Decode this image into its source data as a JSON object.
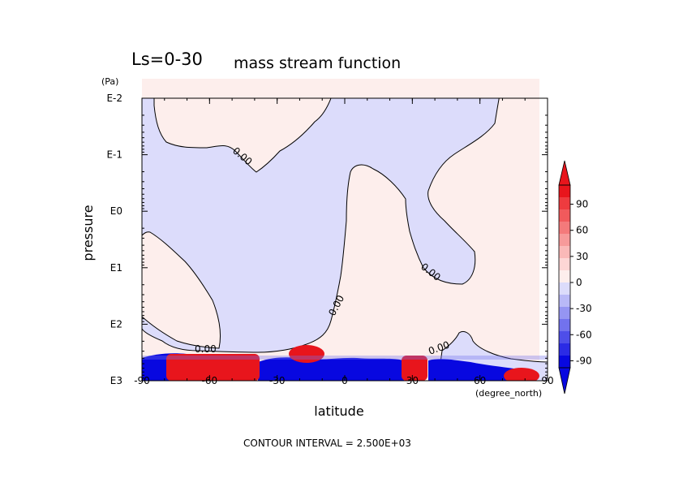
{
  "chart_data": {
    "type": "heatmap",
    "title_left": "Ls=0-30",
    "title": "mass stream function",
    "xlabel": "latitude",
    "ylabel": "pressure",
    "x_unit": "(degree_north)",
    "y_unit": "(Pa)",
    "x_ticks": [
      "-90",
      "-60",
      "-30",
      "0",
      "30",
      "60",
      "90"
    ],
    "x_range": [
      -90,
      90
    ],
    "y_ticks": [
      "E3",
      "E2",
      "E1",
      "E0",
      "E-1",
      "E-2"
    ],
    "y_scale": "log",
    "y_range_exponent": [
      3,
      -2
    ],
    "contour_labels": [
      "0.00",
      "0.00",
      "0.00",
      "0.00",
      "0.00",
      "0.00"
    ],
    "colorbar": {
      "ticks": [
        "90",
        "60",
        "30",
        "0",
        "-30",
        "-60",
        "-90"
      ],
      "levels": [
        {
          "value": 105,
          "color": "#e8151c"
        },
        {
          "value": 90,
          "color": "#ee3b3f"
        },
        {
          "value": 75,
          "color": "#f15a5c"
        },
        {
          "value": 60,
          "color": "#f47a7b"
        },
        {
          "value": 45,
          "color": "#f79a9a"
        },
        {
          "value": 30,
          "color": "#fab9b8"
        },
        {
          "value": 15,
          "color": "#fdd6d5"
        },
        {
          "value": 0,
          "color": "#fdeeec"
        },
        {
          "value": -15,
          "color": "#dcdcfb"
        },
        {
          "value": -30,
          "color": "#b9b9f7"
        },
        {
          "value": -45,
          "color": "#9595f2"
        },
        {
          "value": -60,
          "color": "#7272ee"
        },
        {
          "value": -75,
          "color": "#4e4ee9"
        },
        {
          "value": -90,
          "color": "#2b2be5"
        },
        {
          "value": -105,
          "color": "#0808e0"
        }
      ]
    },
    "footer": "CONTOUR INTERVAL = 2.500E+03",
    "colors": {
      "positive_background": "#fdeeec",
      "negative_background": "#dcdcfb",
      "strong_positive": "#e8151c",
      "strong_negative": "#0808e0"
    }
  }
}
